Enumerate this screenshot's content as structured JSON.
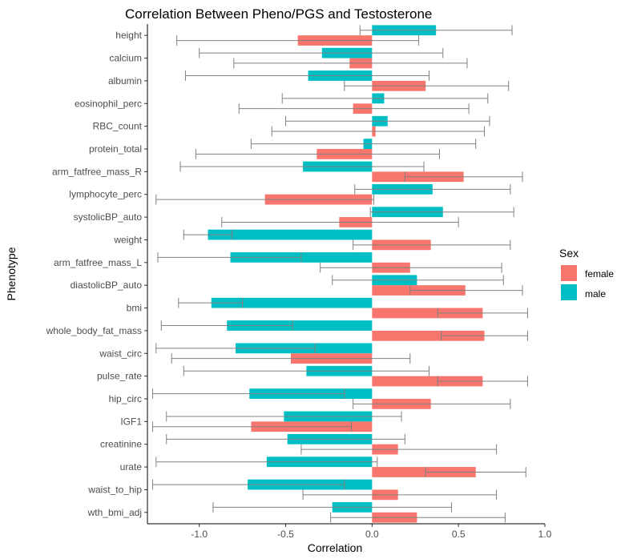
{
  "chart_data": {
    "type": "bar",
    "orientation": "horizontal",
    "title": "Correlation Between Pheno/PGS and Testosterone",
    "xlabel": "Correlation",
    "ylabel": "Phenotype",
    "xlim": [
      -1.3,
      1.0
    ],
    "xticks": [
      -1.0,
      -0.5,
      0.0,
      0.5,
      1.0
    ],
    "xtick_labels": [
      "-1.0",
      "-0.5",
      "0.0",
      "0.5",
      "1.0"
    ],
    "grid": false,
    "legend": {
      "title": "Sex",
      "position": "right",
      "entries": [
        "female",
        "male"
      ]
    },
    "colors": {
      "female": "#F8766D",
      "male": "#00BFC4",
      "errorbar": "#808080"
    },
    "categories": [
      "height",
      "calcium",
      "albumin",
      "eosinophil_perc",
      "RBC_count",
      "protein_total",
      "arm_fatfree_mass_R",
      "lymphocyte_perc",
      "systolicBP_auto",
      "weight",
      "arm_fatfree_mass_L",
      "diastolicBP_auto",
      "bmi",
      "whole_body_fat_mass",
      "waist_circ",
      "pulse_rate",
      "hip_circ",
      "IGF1",
      "creatinine",
      "urate",
      "waist_to_hip",
      "wth_bmi_adj"
    ],
    "series": [
      {
        "name": "male",
        "values": [
          0.37,
          -0.29,
          -0.37,
          0.07,
          0.09,
          -0.05,
          -0.4,
          0.35,
          0.41,
          -0.95,
          -0.82,
          0.26,
          -0.93,
          -0.84,
          -0.79,
          -0.38,
          -0.71,
          -0.51,
          -0.49,
          -0.61,
          -0.72,
          -0.23
        ],
        "err_low": [
          -0.07,
          -1.0,
          -1.08,
          -0.52,
          -0.5,
          -0.7,
          -1.11,
          -0.1,
          -0.01,
          -1.09,
          -1.24,
          -0.23,
          -1.12,
          -1.22,
          -1.25,
          -1.09,
          -1.27,
          -1.19,
          -1.19,
          -1.25,
          -1.27,
          -0.92
        ],
        "err_high": [
          0.81,
          0.41,
          0.33,
          0.67,
          0.68,
          0.6,
          0.3,
          0.8,
          0.82,
          -0.81,
          -0.41,
          0.76,
          -0.75,
          -0.46,
          -0.33,
          0.33,
          -0.16,
          0.17,
          0.19,
          0.03,
          -0.16,
          0.46
        ]
      },
      {
        "name": "female",
        "values": [
          -0.43,
          -0.13,
          0.31,
          -0.11,
          0.02,
          -0.32,
          0.53,
          -0.62,
          -0.19,
          0.34,
          0.22,
          0.54,
          0.64,
          0.65,
          -0.47,
          0.64,
          0.34,
          -0.7,
          0.15,
          0.6,
          0.15,
          0.26
        ],
        "err_low": [
          -1.13,
          -0.8,
          -0.16,
          -0.77,
          -0.58,
          -1.02,
          0.19,
          -1.25,
          -0.87,
          -0.11,
          -0.3,
          0.22,
          0.38,
          0.4,
          -1.16,
          0.38,
          -0.11,
          -1.27,
          -0.41,
          0.31,
          -0.4,
          -0.24
        ],
        "err_high": [
          0.27,
          0.55,
          0.79,
          0.56,
          0.65,
          0.39,
          0.87,
          0.01,
          0.5,
          0.8,
          0.75,
          0.87,
          0.9,
          0.9,
          0.22,
          0.9,
          0.8,
          -0.12,
          0.72,
          0.89,
          0.72,
          0.77
        ]
      }
    ]
  }
}
